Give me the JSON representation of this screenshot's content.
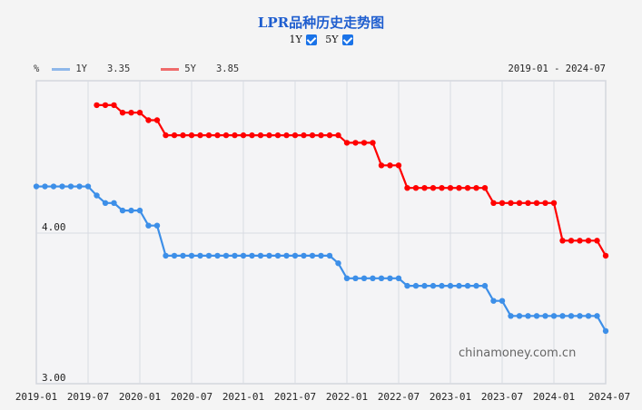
{
  "header": {
    "title": "LPR品种历史走势图",
    "toggles": [
      {
        "label": "1Y",
        "checked": true
      },
      {
        "label": "5Y",
        "checked": true
      }
    ]
  },
  "legend": {
    "unit": "%",
    "items": [
      {
        "label": "1Y",
        "value": "3.35",
        "color": "#4a90e2"
      },
      {
        "label": "5Y",
        "value": "3.85",
        "color": "#ff0000"
      }
    ]
  },
  "date_range": "2019-01 - 2024-07",
  "watermark": "chinamoney.com.cn",
  "chart_data": {
    "type": "line",
    "title": "LPR品种历史走势图",
    "xlabel": "",
    "ylabel": "%",
    "ylim": [
      3.0,
      5.0
    ],
    "y_ticks": [
      "3.00",
      "4.00"
    ],
    "x_ticks": [
      "2019-01",
      "2019-07",
      "2020-01",
      "2020-07",
      "2021-01",
      "2021-07",
      "2022-01",
      "2022-07",
      "2023-01",
      "2023-07",
      "2024-01",
      "2024-07"
    ],
    "grid": true,
    "legend_position": "top-left",
    "x_start": "2019-01",
    "x_end": "2024-07",
    "series": [
      {
        "name": "1Y",
        "color": "#3d8fe8",
        "start_index": 0,
        "values": [
          4.31,
          4.31,
          4.31,
          4.31,
          4.31,
          4.31,
          4.31,
          4.25,
          4.2,
          4.2,
          4.15,
          4.15,
          4.15,
          4.05,
          4.05,
          3.85,
          3.85,
          3.85,
          3.85,
          3.85,
          3.85,
          3.85,
          3.85,
          3.85,
          3.85,
          3.85,
          3.85,
          3.85,
          3.85,
          3.85,
          3.85,
          3.85,
          3.85,
          3.85,
          3.85,
          3.8,
          3.7,
          3.7,
          3.7,
          3.7,
          3.7,
          3.7,
          3.7,
          3.65,
          3.65,
          3.65,
          3.65,
          3.65,
          3.65,
          3.65,
          3.65,
          3.65,
          3.65,
          3.55,
          3.55,
          3.45,
          3.45,
          3.45,
          3.45,
          3.45,
          3.45,
          3.45,
          3.45,
          3.45,
          3.45,
          3.45,
          3.35
        ]
      },
      {
        "name": "5Y",
        "color": "#ff0000",
        "start_index": 7,
        "values": [
          4.85,
          4.85,
          4.85,
          4.8,
          4.8,
          4.8,
          4.75,
          4.75,
          4.65,
          4.65,
          4.65,
          4.65,
          4.65,
          4.65,
          4.65,
          4.65,
          4.65,
          4.65,
          4.65,
          4.65,
          4.65,
          4.65,
          4.65,
          4.65,
          4.65,
          4.65,
          4.65,
          4.65,
          4.65,
          4.6,
          4.6,
          4.6,
          4.6,
          4.45,
          4.45,
          4.45,
          4.3,
          4.3,
          4.3,
          4.3,
          4.3,
          4.3,
          4.3,
          4.3,
          4.3,
          4.3,
          4.2,
          4.2,
          4.2,
          4.2,
          4.2,
          4.2,
          4.2,
          4.2,
          3.95,
          3.95,
          3.95,
          3.95,
          3.95,
          3.85
        ]
      }
    ]
  }
}
